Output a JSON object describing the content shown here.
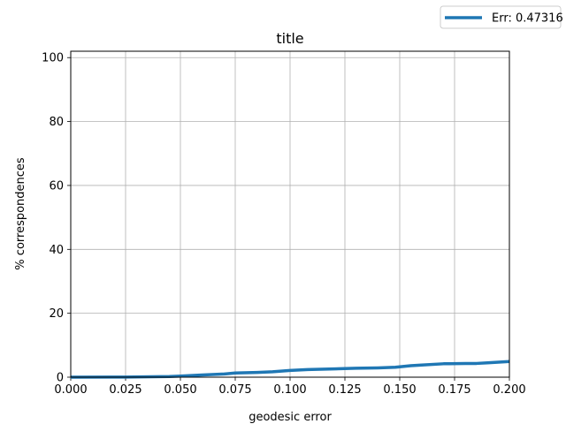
{
  "chart_data": {
    "type": "line",
    "title": "title",
    "xlabel": "geodesic error",
    "ylabel": "% correspondences",
    "xlim": [
      0,
      0.2
    ],
    "ylim": [
      0,
      102
    ],
    "grid": true,
    "legend_position": "top-right",
    "x_ticks": [
      "0.000",
      "0.025",
      "0.050",
      "0.075",
      "0.100",
      "0.125",
      "0.150",
      "0.175",
      "0.200"
    ],
    "y_ticks": [
      "0",
      "20",
      "40",
      "60",
      "80",
      "100"
    ],
    "series": [
      {
        "name": "Err: 0.47316",
        "color": "#1f77b4",
        "x": [
          0.0,
          0.025,
          0.045,
          0.05,
          0.06,
          0.07,
          0.075,
          0.085,
          0.092,
          0.1,
          0.108,
          0.12,
          0.13,
          0.14,
          0.148,
          0.155,
          0.16,
          0.17,
          0.18,
          0.185,
          0.19,
          0.2
        ],
        "y": [
          0.0,
          0.05,
          0.2,
          0.35,
          0.7,
          1.0,
          1.3,
          1.5,
          1.7,
          2.1,
          2.4,
          2.6,
          2.8,
          2.9,
          3.1,
          3.6,
          3.8,
          4.2,
          4.3,
          4.3,
          4.5,
          4.9
        ]
      }
    ]
  }
}
